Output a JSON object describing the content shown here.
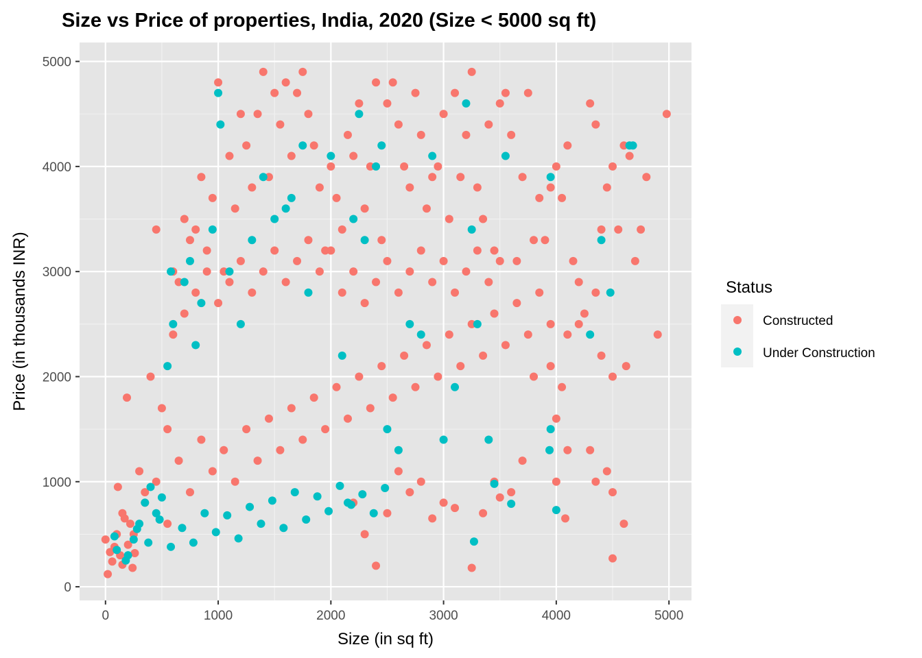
{
  "chart_data": {
    "type": "scatter",
    "title": "Size vs Price of properties, India, 2020 (Size < 5000 sq ft)",
    "xlabel": "Size (in sq ft)",
    "ylabel": "Price (in thousands INR)",
    "xlim": [
      -230,
      5200
    ],
    "ylim": [
      -130,
      5180
    ],
    "x_ticks": [
      0,
      1000,
      2000,
      3000,
      4000,
      5000
    ],
    "y_ticks": [
      0,
      1000,
      2000,
      3000,
      4000,
      5000
    ],
    "x_tick_labels": [
      "0",
      "1000",
      "2000",
      "3000",
      "4000",
      "5000"
    ],
    "y_tick_labels": [
      "0",
      "1000",
      "2000",
      "3000",
      "4000",
      "5000"
    ],
    "grid": true,
    "panel_background": "#e5e5e5",
    "legend": {
      "title": "Status",
      "position": "right",
      "entries": [
        {
          "label": "Constructed",
          "color": "#F8766D"
        },
        {
          "label": "Under Construction",
          "color": "#00BFC4"
        }
      ]
    },
    "series": [
      {
        "name": "Constructed",
        "color": "#F8766D",
        "points": [
          [
            0,
            450
          ],
          [
            20,
            120
          ],
          [
            40,
            330
          ],
          [
            60,
            240
          ],
          [
            80,
            380
          ],
          [
            100,
            500
          ],
          [
            110,
            950
          ],
          [
            130,
            300
          ],
          [
            150,
            210
          ],
          [
            170,
            650
          ],
          [
            190,
            1800
          ],
          [
            200,
            400
          ],
          [
            220,
            600
          ],
          [
            240,
            180
          ],
          [
            260,
            320
          ],
          [
            300,
            1100
          ],
          [
            350,
            900
          ],
          [
            400,
            2000
          ],
          [
            450,
            3400
          ],
          [
            500,
            1700
          ],
          [
            550,
            1500
          ],
          [
            600,
            3000
          ],
          [
            650,
            2900
          ],
          [
            700,
            3500
          ],
          [
            750,
            3300
          ],
          [
            800,
            3400
          ],
          [
            850,
            3900
          ],
          [
            900,
            3200
          ],
          [
            950,
            3700
          ],
          [
            1000,
            4800
          ],
          [
            1050,
            3000
          ],
          [
            1100,
            4100
          ],
          [
            1150,
            3600
          ],
          [
            1200,
            4500
          ],
          [
            1250,
            4200
          ],
          [
            1300,
            3800
          ],
          [
            1350,
            4500
          ],
          [
            1400,
            4900
          ],
          [
            1450,
            3900
          ],
          [
            1500,
            4700
          ],
          [
            1550,
            4400
          ],
          [
            1600,
            4800
          ],
          [
            1650,
            4100
          ],
          [
            1700,
            4700
          ],
          [
            1750,
            4900
          ],
          [
            1800,
            4500
          ],
          [
            1850,
            4200
          ],
          [
            1900,
            3800
          ],
          [
            1950,
            3200
          ],
          [
            2000,
            4000
          ],
          [
            2050,
            3700
          ],
          [
            2100,
            3400
          ],
          [
            2150,
            4300
          ],
          [
            2200,
            4100
          ],
          [
            2250,
            4600
          ],
          [
            2300,
            3600
          ],
          [
            2350,
            4000
          ],
          [
            2400,
            4800
          ],
          [
            2450,
            3300
          ],
          [
            2500,
            4600
          ],
          [
            2550,
            4800
          ],
          [
            2600,
            4400
          ],
          [
            2650,
            4000
          ],
          [
            2700,
            3800
          ],
          [
            2750,
            4700
          ],
          [
            2800,
            4300
          ],
          [
            2850,
            3600
          ],
          [
            2900,
            3900
          ],
          [
            2950,
            4000
          ],
          [
            3000,
            4500
          ],
          [
            3050,
            3500
          ],
          [
            3100,
            4700
          ],
          [
            3150,
            3900
          ],
          [
            3200,
            4300
          ],
          [
            3250,
            4900
          ],
          [
            3300,
            3800
          ],
          [
            3350,
            3500
          ],
          [
            3400,
            4400
          ],
          [
            3450,
            3200
          ],
          [
            3500,
            4600
          ],
          [
            3550,
            4700
          ],
          [
            3600,
            4300
          ],
          [
            3650,
            3100
          ],
          [
            3700,
            3900
          ],
          [
            3750,
            4700
          ],
          [
            3800,
            3300
          ],
          [
            3850,
            3700
          ],
          [
            3900,
            3300
          ],
          [
            3950,
            3800
          ],
          [
            4000,
            4000
          ],
          [
            4050,
            3700
          ],
          [
            4100,
            4200
          ],
          [
            4150,
            3100
          ],
          [
            4200,
            2900
          ],
          [
            4250,
            2600
          ],
          [
            4300,
            4600
          ],
          [
            4350,
            4400
          ],
          [
            4400,
            3400
          ],
          [
            4450,
            3800
          ],
          [
            4500,
            4000
          ],
          [
            4550,
            3400
          ],
          [
            4600,
            4200
          ],
          [
            4650,
            4100
          ],
          [
            4700,
            3100
          ],
          [
            4750,
            3400
          ],
          [
            4800,
            3900
          ],
          [
            4900,
            2400
          ],
          [
            4980,
            4500
          ],
          [
            4500,
            270
          ],
          [
            4600,
            600
          ],
          [
            4450,
            1100
          ],
          [
            4350,
            1000
          ],
          [
            4500,
            900
          ],
          [
            4300,
            1300
          ],
          [
            4100,
            1300
          ],
          [
            4000,
            1000
          ],
          [
            4080,
            650
          ],
          [
            4000,
            1600
          ],
          [
            4050,
            1900
          ],
          [
            3950,
            2100
          ],
          [
            4100,
            2400
          ],
          [
            4200,
            2500
          ],
          [
            4350,
            2800
          ],
          [
            4500,
            2000
          ],
          [
            4620,
            2100
          ],
          [
            4400,
            2200
          ],
          [
            3800,
            2000
          ],
          [
            3700,
            1200
          ],
          [
            3600,
            900
          ],
          [
            3500,
            850
          ],
          [
            3450,
            1000
          ],
          [
            3350,
            700
          ],
          [
            3250,
            180
          ],
          [
            3100,
            750
          ],
          [
            3000,
            800
          ],
          [
            2900,
            650
          ],
          [
            2800,
            1000
          ],
          [
            2700,
            900
          ],
          [
            2600,
            1100
          ],
          [
            2500,
            700
          ],
          [
            2400,
            200
          ],
          [
            2300,
            500
          ],
          [
            2200,
            800
          ],
          [
            150,
            700
          ],
          [
            250,
            500
          ],
          [
            350,
            800
          ],
          [
            450,
            1000
          ],
          [
            550,
            600
          ],
          [
            650,
            1200
          ],
          [
            750,
            900
          ],
          [
            850,
            1400
          ],
          [
            950,
            1100
          ],
          [
            1050,
            1300
          ],
          [
            1150,
            1000
          ],
          [
            1250,
            1500
          ],
          [
            1350,
            1200
          ],
          [
            1450,
            1600
          ],
          [
            1550,
            1300
          ],
          [
            1650,
            1700
          ],
          [
            1750,
            1400
          ],
          [
            1850,
            1800
          ],
          [
            1950,
            1500
          ],
          [
            2050,
            1900
          ],
          [
            2150,
            1600
          ],
          [
            2250,
            2000
          ],
          [
            2350,
            1700
          ],
          [
            2450,
            2100
          ],
          [
            2550,
            1800
          ],
          [
            2650,
            2200
          ],
          [
            2750,
            1900
          ],
          [
            2850,
            2300
          ],
          [
            2950,
            2000
          ],
          [
            3050,
            2400
          ],
          [
            3150,
            2100
          ],
          [
            3250,
            2500
          ],
          [
            3350,
            2200
          ],
          [
            3450,
            2600
          ],
          [
            3550,
            2300
          ],
          [
            3650,
            2700
          ],
          [
            3750,
            2400
          ],
          [
            3850,
            2800
          ],
          [
            3950,
            2500
          ],
          [
            600,
            2400
          ],
          [
            700,
            2600
          ],
          [
            800,
            2800
          ],
          [
            900,
            3000
          ],
          [
            1000,
            2700
          ],
          [
            1100,
            2900
          ],
          [
            1200,
            3100
          ],
          [
            1300,
            2800
          ],
          [
            1400,
            3000
          ],
          [
            1500,
            3200
          ],
          [
            1600,
            2900
          ],
          [
            1700,
            3100
          ],
          [
            1800,
            3300
          ],
          [
            1900,
            3000
          ],
          [
            2000,
            3200
          ],
          [
            2100,
            2800
          ],
          [
            2200,
            3000
          ],
          [
            2300,
            2700
          ],
          [
            2400,
            2900
          ],
          [
            2500,
            3100
          ],
          [
            2600,
            2800
          ],
          [
            2700,
            3000
          ],
          [
            2800,
            3200
          ],
          [
            2900,
            2900
          ],
          [
            3000,
            3100
          ],
          [
            3100,
            2800
          ],
          [
            3200,
            3000
          ],
          [
            3300,
            3200
          ],
          [
            3400,
            2900
          ],
          [
            3500,
            3100
          ]
        ]
      },
      {
        "name": "Under Construction",
        "color": "#00BFC4",
        "points": [
          [
            80,
            480
          ],
          [
            200,
            300
          ],
          [
            250,
            450
          ],
          [
            300,
            600
          ],
          [
            350,
            800
          ],
          [
            400,
            950
          ],
          [
            450,
            700
          ],
          [
            500,
            850
          ],
          [
            550,
            2100
          ],
          [
            580,
            3000
          ],
          [
            600,
            2500
          ],
          [
            700,
            2900
          ],
          [
            750,
            3100
          ],
          [
            800,
            2300
          ],
          [
            850,
            2700
          ],
          [
            950,
            3400
          ],
          [
            1000,
            4700
          ],
          [
            1020,
            4400
          ],
          [
            1100,
            3000
          ],
          [
            1200,
            2500
          ],
          [
            1300,
            3300
          ],
          [
            1400,
            3900
          ],
          [
            1500,
            3500
          ],
          [
            1600,
            3600
          ],
          [
            1650,
            3700
          ],
          [
            1750,
            4200
          ],
          [
            1800,
            2800
          ],
          [
            2000,
            4100
          ],
          [
            2100,
            2200
          ],
          [
            2150,
            800
          ],
          [
            2200,
            3500
          ],
          [
            2250,
            4500
          ],
          [
            2300,
            3300
          ],
          [
            2400,
            4000
          ],
          [
            2450,
            4200
          ],
          [
            2500,
            1500
          ],
          [
            2600,
            1300
          ],
          [
            2700,
            2500
          ],
          [
            2800,
            2400
          ],
          [
            2900,
            4100
          ],
          [
            3000,
            1400
          ],
          [
            3100,
            1900
          ],
          [
            3200,
            4600
          ],
          [
            3250,
            3400
          ],
          [
            3270,
            430
          ],
          [
            3300,
            2500
          ],
          [
            3400,
            1400
          ],
          [
            3450,
            980
          ],
          [
            3550,
            4100
          ],
          [
            3600,
            790
          ],
          [
            3950,
            1500
          ],
          [
            3940,
            1300
          ],
          [
            4000,
            730
          ],
          [
            3950,
            3900
          ],
          [
            4300,
            2400
          ],
          [
            4400,
            3300
          ],
          [
            4480,
            2800
          ],
          [
            4650,
            4200
          ],
          [
            4680,
            4200
          ],
          [
            100,
            350
          ],
          [
            180,
            250
          ],
          [
            280,
            550
          ],
          [
            380,
            420
          ],
          [
            480,
            640
          ],
          [
            580,
            380
          ],
          [
            680,
            560
          ],
          [
            780,
            420
          ],
          [
            880,
            700
          ],
          [
            980,
            520
          ],
          [
            1080,
            680
          ],
          [
            1180,
            460
          ],
          [
            1280,
            760
          ],
          [
            1380,
            600
          ],
          [
            1480,
            820
          ],
          [
            1580,
            560
          ],
          [
            1680,
            900
          ],
          [
            1780,
            640
          ],
          [
            1880,
            860
          ],
          [
            1980,
            720
          ],
          [
            2080,
            960
          ],
          [
            2180,
            780
          ],
          [
            2280,
            880
          ],
          [
            2380,
            700
          ],
          [
            2480,
            940
          ]
        ]
      }
    ]
  }
}
